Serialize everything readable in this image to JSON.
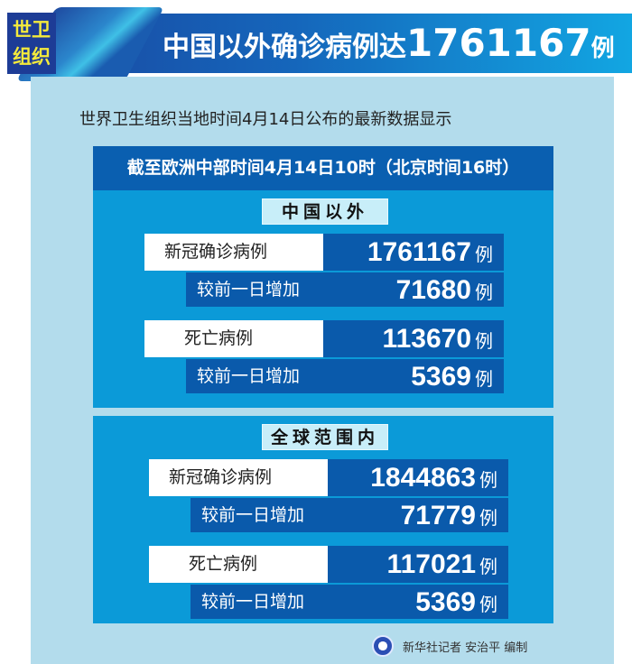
{
  "header": {
    "badge": [
      "世卫",
      "组织"
    ],
    "title_prefix": "中国以外确诊病例达",
    "title_number": "1761167",
    "title_unit": "例"
  },
  "subtitle": "世界卫生组织当地时间4月14日公布的最新数据显示",
  "time_note": "截至欧洲中部时间4月14日10时（北京时间16时）",
  "sections": [
    {
      "title": "中国以外",
      "rows": [
        {
          "label": "新冠确诊病例",
          "value": "1761167",
          "unit": "例",
          "delta_label": "较前一日增加",
          "delta": "71680",
          "delta_unit": "例"
        },
        {
          "label": "死亡病例",
          "value": "113670",
          "unit": "例",
          "delta_label": "较前一日增加",
          "delta": "5369",
          "delta_unit": "例"
        }
      ]
    },
    {
      "title": "全球范围内",
      "rows": [
        {
          "label": "新冠确诊病例",
          "value": "1844863",
          "unit": "例",
          "delta_label": "较前一日增加",
          "delta": "71779",
          "delta_unit": "例"
        },
        {
          "label": "死亡病例",
          "value": "117021",
          "unit": "例",
          "delta_label": "较前一日增加",
          "delta": "5369",
          "delta_unit": "例"
        }
      ]
    }
  ],
  "credit": "新华社记者 安治平 编制",
  "colors": {
    "panel": "#b3dcec",
    "box": "#0b9ad8",
    "dark_row": "#0a5aab",
    "badge_text": "#f4ea3c"
  }
}
